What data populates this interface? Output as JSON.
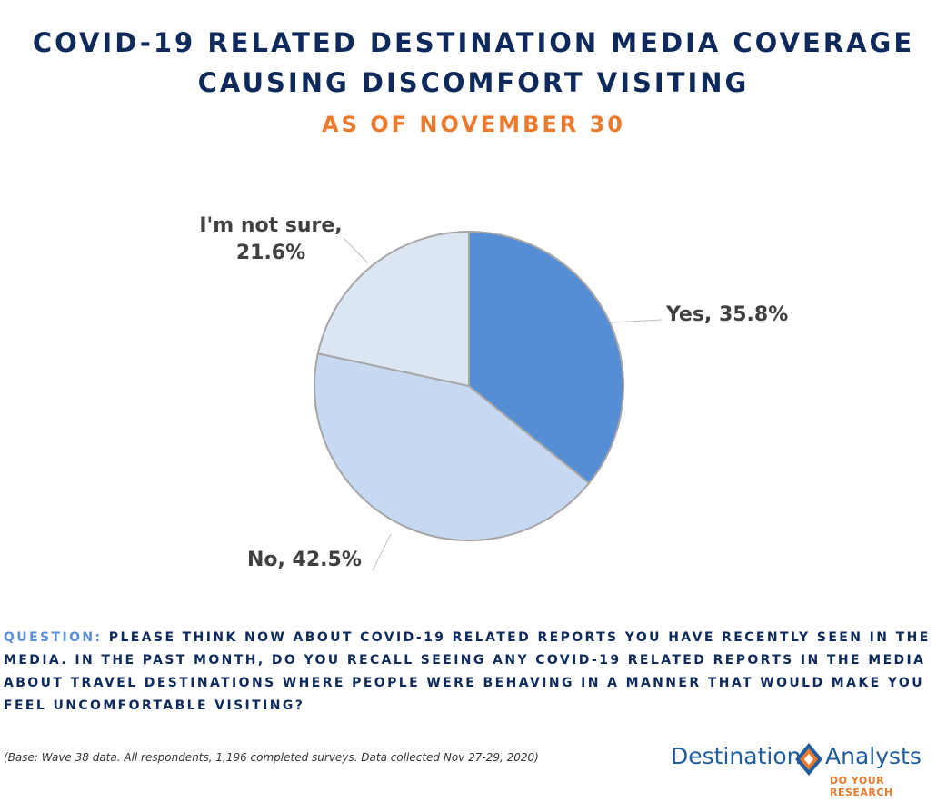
{
  "title": {
    "line1": "COVID-19 RELATED DESTINATION MEDIA COVERAGE",
    "line2": "CAUSING DISCOMFORT VISITING",
    "subtitle": "AS OF NOVEMBER 30"
  },
  "chart_data": {
    "type": "pie",
    "title": "COVID-19 RELATED DESTINATION MEDIA COVERAGE CAUSING DISCOMFORT VISITING",
    "subtitle": "AS OF NOVEMBER 30",
    "unit": "%",
    "start_angle_deg": 0,
    "direction": "clockwise",
    "slices": [
      {
        "label": "Yes",
        "value": 35.8,
        "display": "Yes, 35.8%",
        "color": "#558ed5"
      },
      {
        "label": "No",
        "value": 42.5,
        "display": "No, 42.5%",
        "color": "#c6d9f1"
      },
      {
        "label": "I'm not sure",
        "value": 21.6,
        "display_lines": [
          "I'm not sure,",
          "21.6%"
        ],
        "color": "#dce6f2"
      }
    ]
  },
  "question": {
    "label": "QUESTION:",
    "text": "PLEASE THINK NOW ABOUT COVID-19 RELATED REPORTS YOU HAVE RECENTLY SEEN IN THE MEDIA. IN THE PAST MONTH, DO YOU RECALL SEEING ANY COVID-19 RELATED REPORTS IN THE MEDIA ABOUT TRAVEL DESTINATIONS WHERE PEOPLE WERE BEHAVING IN A MANNER THAT WOULD MAKE YOU FEEL UNCOMFORTABLE VISITING?"
  },
  "base_note": "(Base: Wave 38 data. All respondents, 1,196 completed surveys. Data collected Nov 27-29, 2020)",
  "logo": {
    "word1": "Destination",
    "word2": "Analysts",
    "tagline": "DO YOUR RESEARCH",
    "colors": {
      "text": "#1f5c9e",
      "accent": "#ec7a2e"
    }
  },
  "colors": {
    "title": "#0e2a5c",
    "subtitle": "#ec7a2e",
    "question_label": "#5a8fd6"
  }
}
